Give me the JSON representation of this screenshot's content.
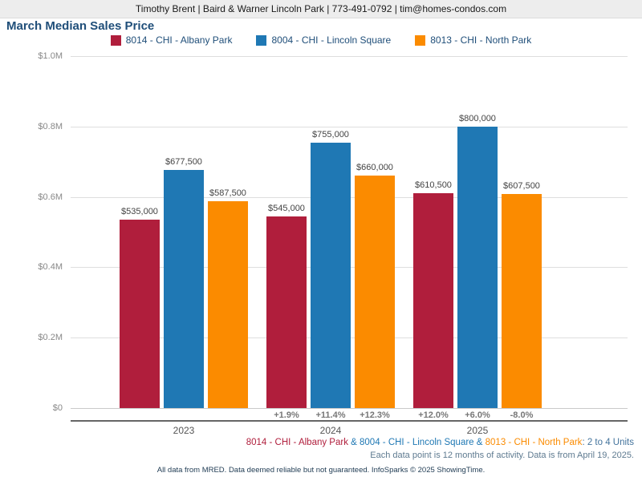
{
  "header": {
    "contact_line": "Timothy Brent | Baird & Warner Lincoln Park | 773-491-0792 | tim@homes-condos.com"
  },
  "title": "March Median Sales Price",
  "legend": [
    {
      "label": "8014 - CHI - Albany Park",
      "color": "#B01E3C"
    },
    {
      "label": "8004 - CHI - Lincoln Square",
      "color": "#1F78B4"
    },
    {
      "label": "8013 - CHI - North Park",
      "color": "#FB8B00"
    }
  ],
  "chart_data": {
    "type": "bar",
    "title": "March Median Sales Price",
    "categories": [
      "2023",
      "2024",
      "2025"
    ],
    "series": [
      {
        "name": "8014 - CHI - Albany Park",
        "color": "#B01E3C",
        "values": [
          535000,
          545000,
          610500
        ],
        "value_labels": [
          "$535,000",
          "$545,000",
          "$610,500"
        ],
        "pct_change": [
          null,
          "+1.9%",
          "+12.0%"
        ]
      },
      {
        "name": "8004 - CHI - Lincoln Square",
        "color": "#1F78B4",
        "values": [
          677500,
          755000,
          800000
        ],
        "value_labels": [
          "$677,500",
          "$755,000",
          "$800,000"
        ],
        "pct_change": [
          null,
          "+11.4%",
          "+6.0%"
        ]
      },
      {
        "name": "8013 - CHI - North Park",
        "color": "#FB8B00",
        "values": [
          587500,
          660000,
          607500
        ],
        "value_labels": [
          "$587,500",
          "$660,000",
          "$607,500"
        ],
        "pct_change": [
          null,
          "+12.3%",
          "-8.0%"
        ]
      }
    ],
    "ylim": [
      0,
      1000000
    ],
    "yticks": [
      {
        "value": 0,
        "label": "$0"
      },
      {
        "value": 200000,
        "label": "$0.2M"
      },
      {
        "value": 400000,
        "label": "$0.4M"
      },
      {
        "value": 600000,
        "label": "$0.6M"
      },
      {
        "value": 800000,
        "label": "$0.8M"
      },
      {
        "value": 1000000,
        "label": "$1.0M"
      }
    ],
    "grid": true,
    "legend_position": "top"
  },
  "footer": {
    "line1_segments": [
      {
        "text": "8014 - CHI - Albany Park",
        "color": "#B01E3C"
      },
      {
        "text": " & ",
        "color": "#1F78B4"
      },
      {
        "text": "8004 - CHI - Lincoln Square",
        "color": "#1F78B4"
      },
      {
        "text": " & ",
        "color": "#1F78B4"
      },
      {
        "text": "8013 - CHI - North Park",
        "color": "#FB8B00"
      },
      {
        "text": ": 2 to 4 Units",
        "color": "#44749D"
      }
    ],
    "line2": "Each data point is 12 months of activity. Data is from April 19, 2025.",
    "line3": "All data from MRED. Data deemed reliable but not guaranteed. InfoSparks © 2025 ShowingTime."
  }
}
